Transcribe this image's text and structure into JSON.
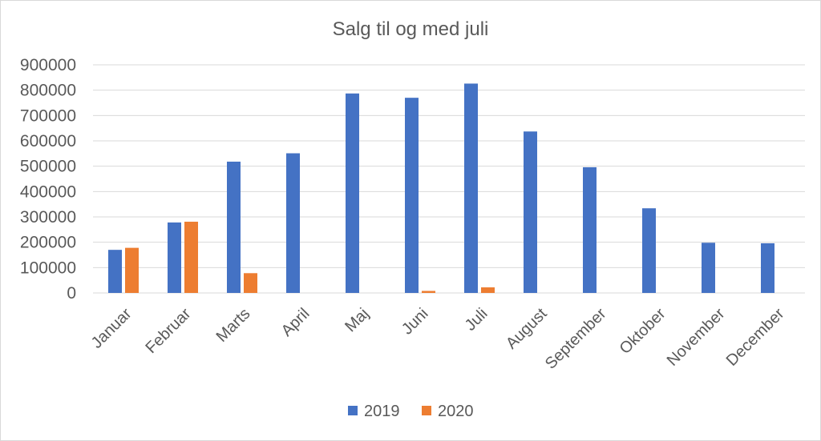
{
  "chart_data": {
    "type": "bar",
    "title": "Salg til og med juli",
    "xlabel": "",
    "ylabel": "",
    "categories": [
      "Januar",
      "Februar",
      "Marts",
      "April",
      "Maj",
      "Juni",
      "Juli",
      "August",
      "September",
      "Oktober",
      "November",
      "December"
    ],
    "series": [
      {
        "name": "2019",
        "color": "#4472c4",
        "values": [
          170000,
          278000,
          518000,
          551000,
          787000,
          770000,
          826000,
          637000,
          496000,
          334000,
          198000,
          196000
        ]
      },
      {
        "name": "2020",
        "color": "#ed7d31",
        "values": [
          178000,
          281000,
          78000,
          null,
          null,
          8000,
          22000,
          null,
          null,
          null,
          null,
          null
        ]
      }
    ],
    "yticks": [
      "0",
      "100000",
      "200000",
      "300000",
      "400000",
      "500000",
      "600000",
      "700000",
      "800000",
      "900000"
    ],
    "ylim": [
      0,
      900000
    ],
    "grid": true,
    "legend": "bottom"
  }
}
